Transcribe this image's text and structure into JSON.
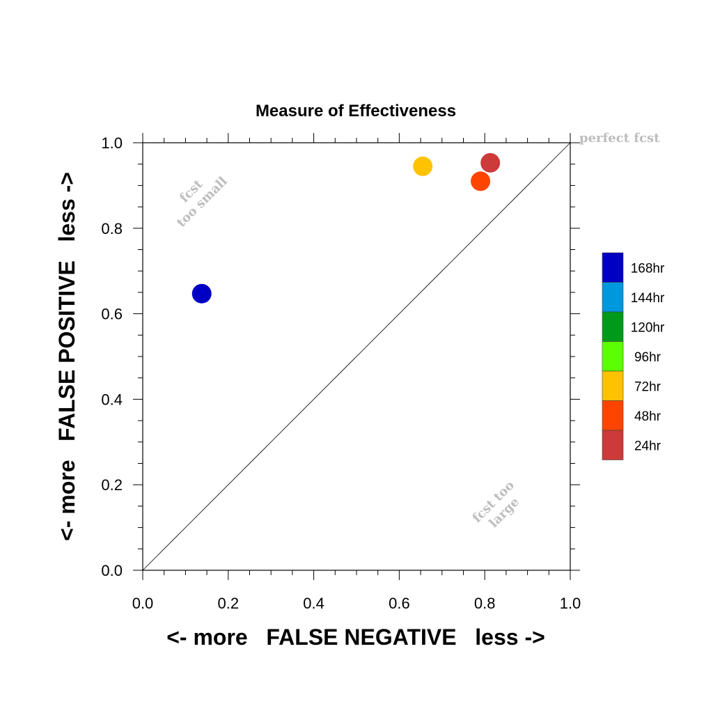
{
  "chart_data": {
    "type": "scatter",
    "title": "Measure of Effectiveness",
    "xlabel": "<- more   FALSE NEGATIVE   less ->",
    "ylabel": "<- more   FALSE POSITIVE   less ->",
    "xlim": [
      0,
      1
    ],
    "ylim": [
      0,
      1
    ],
    "xticks": [
      "0.0",
      "0.2",
      "0.4",
      "0.6",
      "0.8",
      "1.0"
    ],
    "yticks": [
      "0.0",
      "0.2",
      "0.4",
      "0.6",
      "0.8",
      "1.0"
    ],
    "grid": false,
    "diagonal_line": true,
    "annotations": {
      "perfect": "perfect fcst",
      "too_small": [
        "fcst",
        "too small"
      ],
      "too_large": [
        "fcst too",
        "large"
      ]
    },
    "legend_position": "right",
    "legend": [
      {
        "label": "168hr",
        "color": "#0000c4"
      },
      {
        "label": "144hr",
        "color": "#0098dc"
      },
      {
        "label": "120hr",
        "color": "#009a1a"
      },
      {
        "label": "96hr",
        "color": "#5cff00"
      },
      {
        "label": "72hr",
        "color": "#ffc200"
      },
      {
        "label": "48hr",
        "color": "#ff4400"
      },
      {
        "label": "24hr",
        "color": "#cc3a3a"
      }
    ],
    "points": [
      {
        "series": "168hr",
        "x": 0.138,
        "y": 0.647,
        "color": "#0000c4"
      },
      {
        "series": "72hr",
        "x": 0.655,
        "y": 0.945,
        "color": "#ffc200"
      },
      {
        "series": "48hr",
        "x": 0.79,
        "y": 0.91,
        "color": "#ff4400"
      },
      {
        "series": "24hr",
        "x": 0.813,
        "y": 0.953,
        "color": "#cc3a3a"
      }
    ]
  }
}
